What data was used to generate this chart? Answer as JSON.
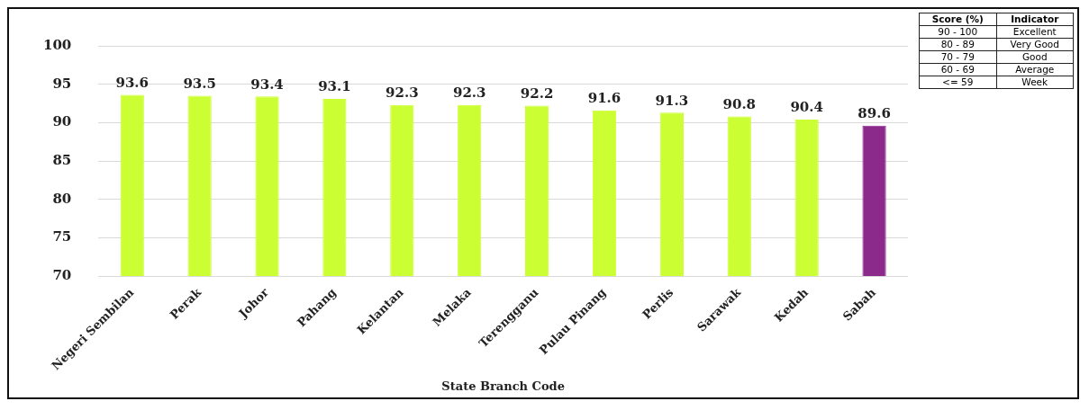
{
  "chart_data": {
    "type": "bar",
    "xlabel": "State Branch Code",
    "categories": [
      "Negeri Sembilan",
      "Perak",
      "Johor",
      "Pahang",
      "Kelantan",
      "Melaka",
      "Terengganu",
      "Pulau Pinang",
      "Perlis",
      "Sarawak",
      "Kedah",
      "Sabah"
    ],
    "values": [
      93.6,
      93.5,
      93.4,
      93.1,
      92.3,
      92.3,
      92.2,
      91.6,
      91.3,
      90.8,
      90.4,
      89.6
    ],
    "colors": [
      "#ccff33",
      "#ccff33",
      "#ccff33",
      "#ccff33",
      "#ccff33",
      "#ccff33",
      "#ccff33",
      "#ccff33",
      "#ccff33",
      "#ccff33",
      "#ccff33",
      "#8b2a8b"
    ],
    "ylim": [
      70,
      100
    ],
    "yticks": [
      70,
      75,
      80,
      85,
      90,
      95,
      100
    ],
    "grid": "y",
    "data_labels": true,
    "legend": false,
    "annotations": [
      "Score (%)",
      "Indicator",
      "90 - 100",
      "Excellent",
      "80 - 89",
      "Very Good",
      "70 - 79",
      "Good",
      "60 - 69",
      "Average",
      "<= 59",
      "Week"
    ]
  }
}
